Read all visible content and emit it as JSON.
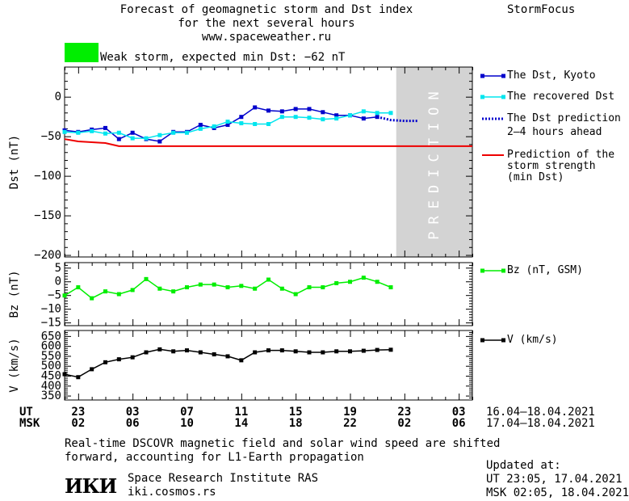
{
  "header": {
    "title_line1": "Forecast of geomagnetic storm and Dst index",
    "title_line2": "for the next several hours",
    "url": "www.spaceweather.ru",
    "brand": "StormFocus"
  },
  "status": {
    "label": "Weak storm, expected min Dst: −62 nT",
    "color": "#00ee00"
  },
  "legend": {
    "dst_kyoto": "The Dst, Kyoto",
    "dst_recovered": "The recovered Dst",
    "dst_prediction_line1": "The Dst prediction",
    "dst_prediction_line2": "2–4 hours ahead",
    "storm_line1": "Prediction of the",
    "storm_line2": "storm strength",
    "storm_line3": "(min Dst)",
    "bz": "Bz (nT, GSM)",
    "v": "V (km/s)"
  },
  "prediction_label": "PREDICTION",
  "time_axis": {
    "ut_label": "UT",
    "msk_label": "MSK",
    "ut_ticks": [
      "23",
      "03",
      "07",
      "11",
      "15",
      "19",
      "23",
      "03"
    ],
    "msk_ticks": [
      "02",
      "06",
      "10",
      "14",
      "18",
      "22",
      "02",
      "06"
    ],
    "ut_range": "16.04–18.04.2021",
    "msk_range": "17.04–18.04.2021"
  },
  "footer": {
    "note_line1": "Real-time DSCOVR magnetic field and solar wind speed are shifted",
    "note_line2": "forward, accounting for L1-Earth propagation",
    "institute": "Space Research Institute RAS",
    "institute_url": "iki.cosmos.rs",
    "logo_text": "ИКИ",
    "updated_label": "Updated at:",
    "updated_ut": "UT   23:05, 17.04.2021",
    "updated_msk": "MSK 02:05, 18.04.2021"
  },
  "chart_data": [
    {
      "type": "line",
      "panel": "dst",
      "ylabel": "Dst (nT)",
      "ylim": [
        -202,
        38
      ],
      "yticks": [
        0,
        -50,
        -100,
        -150,
        -200
      ],
      "x_unit": "hours since 22 UT 16.04.2021",
      "xlim": [
        0,
        30
      ],
      "prediction_start_x": 24.4,
      "series": [
        {
          "name": "The Dst, Kyoto",
          "color": "#0000cc",
          "x": [
            0,
            1,
            2,
            3,
            4,
            5,
            6,
            7,
            8,
            9,
            10,
            11,
            12,
            13,
            14,
            15,
            16,
            17,
            18,
            19,
            20,
            21,
            22,
            23
          ],
          "y": [
            -42,
            -44,
            -41,
            -39,
            -53,
            -45,
            -53,
            -56,
            -44,
            -44,
            -35,
            -39,
            -35,
            -25,
            -13,
            -17,
            -18,
            -15,
            -15,
            -19,
            -23,
            -23,
            -27,
            -25
          ]
        },
        {
          "name": "The recovered Dst",
          "color": "#00e5ee",
          "x": [
            0,
            1,
            2,
            3,
            4,
            5,
            6,
            7,
            8,
            9,
            10,
            11,
            12,
            13,
            14,
            15,
            16,
            17,
            18,
            19,
            20,
            21,
            22,
            23,
            24
          ],
          "y": [
            -44,
            -45,
            -43,
            -46,
            -45,
            -52,
            -52,
            -48,
            -45,
            -45,
            -40,
            -37,
            -31,
            -33,
            -34,
            -34,
            -25,
            -25,
            -26,
            -28,
            -27,
            -23,
            -18,
            -20,
            -20
          ]
        },
        {
          "name": "The Dst prediction",
          "color": "#0000cc",
          "style": "dotted",
          "x": [
            23,
            24,
            25,
            26
          ],
          "y": [
            -25,
            -29,
            -30,
            -30
          ]
        },
        {
          "name": "Prediction of the storm strength (min Dst)",
          "color": "#ee0000",
          "x": [
            -1,
            0,
            1,
            2,
            3,
            4,
            30
          ],
          "y": [
            -52,
            -53,
            -56,
            -57,
            -58,
            -62,
            -62
          ]
        }
      ]
    },
    {
      "type": "line",
      "panel": "bz",
      "ylabel": "Bz (nT)",
      "ylim": [
        -16,
        7
      ],
      "yticks": [
        5,
        0,
        -5,
        -10,
        -15
      ],
      "xlim": [
        0,
        30
      ],
      "series": [
        {
          "name": "Bz (nT, GSM)",
          "color": "#00ee00",
          "x": [
            0,
            1,
            2,
            3,
            4,
            5,
            6,
            7,
            8,
            9,
            10,
            11,
            12,
            13,
            14,
            15,
            16,
            17,
            18,
            19,
            20,
            21,
            22,
            23,
            24
          ],
          "y": [
            -5,
            -2,
            -6,
            -3.5,
            -4.5,
            -3,
            1,
            -2.5,
            -3.5,
            -2,
            -1,
            -1,
            -2,
            -1.5,
            -2.5,
            0.8,
            -2.5,
            -4.5,
            -2,
            -2,
            -0.5,
            0,
            1.5,
            0,
            -2
          ]
        }
      ]
    },
    {
      "type": "line",
      "panel": "v",
      "ylabel": "V (km/s)",
      "ylim": [
        330,
        680
      ],
      "yticks": [
        350,
        400,
        450,
        500,
        550,
        600,
        650
      ],
      "xlim": [
        0,
        30
      ],
      "series": [
        {
          "name": "V (km/s)",
          "color": "#000000",
          "x": [
            0,
            1,
            2,
            3,
            4,
            5,
            6,
            7,
            8,
            9,
            10,
            11,
            12,
            13,
            14,
            15,
            16,
            17,
            18,
            19,
            20,
            21,
            22,
            23,
            24
          ],
          "y": [
            460,
            445,
            485,
            520,
            535,
            545,
            570,
            585,
            575,
            580,
            570,
            560,
            550,
            530,
            570,
            580,
            580,
            575,
            570,
            570,
            575,
            575,
            578,
            582,
            583
          ]
        }
      ]
    }
  ]
}
